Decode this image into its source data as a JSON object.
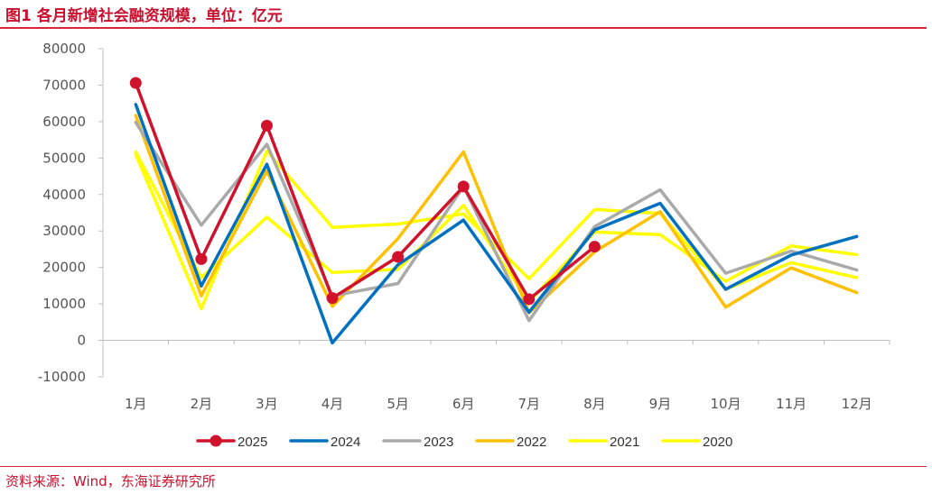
{
  "header": {
    "title": "图1  各月新增社会融资规模，单位：亿元"
  },
  "footer": {
    "source": "资料来源：Wind，东海证券研究所"
  },
  "chart_data": {
    "type": "line",
    "title": "各月新增社会融资规模，单位：亿元",
    "xlabel": "",
    "ylabel": "",
    "categories": [
      "1月",
      "2月",
      "3月",
      "4月",
      "5月",
      "6月",
      "7月",
      "8月",
      "9月",
      "10月",
      "11月",
      "12月"
    ],
    "ylim": [
      -10000,
      80000
    ],
    "yticks": [
      "80000",
      "70000",
      "60000",
      "50000",
      "40000",
      "30000",
      "20000",
      "10000",
      "0",
      "-10000"
    ],
    "ytick_values": [
      80000,
      70000,
      60000,
      50000,
      40000,
      30000,
      20000,
      10000,
      0,
      -10000
    ],
    "grid": false,
    "legend_position": "bottom",
    "series": [
      {
        "name": "2020",
        "color": "#ffff00",
        "markers": false,
        "values": [
          51000,
          8700,
          51900,
          31000,
          31900,
          34700,
          16900,
          35900,
          34800,
          14000,
          21300,
          17200
        ]
      },
      {
        "name": "2021",
        "color": "#ffff00",
        "markers": false,
        "values": [
          51700,
          17200,
          33800,
          18600,
          19500,
          37000,
          10600,
          29700,
          29000,
          16200,
          25900,
          23500
        ]
      },
      {
        "name": "2022",
        "color": "#ffc000",
        "markers": false,
        "values": [
          61700,
          12200,
          46500,
          9300,
          27900,
          51700,
          7600,
          24300,
          35300,
          9100,
          19900,
          13100
        ]
      },
      {
        "name": "2023",
        "color": "#aaaaaa",
        "markers": false,
        "values": [
          59800,
          31600,
          53800,
          12200,
          15600,
          42200,
          5400,
          31200,
          41300,
          18400,
          24500,
          19300
        ]
      },
      {
        "name": "2024",
        "color": "#0070c0",
        "markers": false,
        "values": [
          64700,
          14900,
          48300,
          -700,
          20700,
          33000,
          7700,
          30300,
          37600,
          14000,
          23400,
          28500
        ]
      },
      {
        "name": "2025",
        "color": "#d0122c",
        "markers": true,
        "values": [
          70600,
          22300,
          58900,
          11600,
          22900,
          42200,
          11300,
          25700,
          null,
          null,
          null,
          null
        ]
      }
    ],
    "legend": [
      {
        "name": "2025",
        "color": "#d0122c",
        "marker": true
      },
      {
        "name": "2024",
        "color": "#0070c0",
        "marker": false
      },
      {
        "name": "2023",
        "color": "#aaaaaa",
        "marker": false
      },
      {
        "name": "2022",
        "color": "#ffc000",
        "marker": false
      },
      {
        "name": "2021",
        "color": "#ffff00",
        "marker": false
      },
      {
        "name": "2020",
        "color": "#ffff00",
        "marker": false
      }
    ]
  }
}
